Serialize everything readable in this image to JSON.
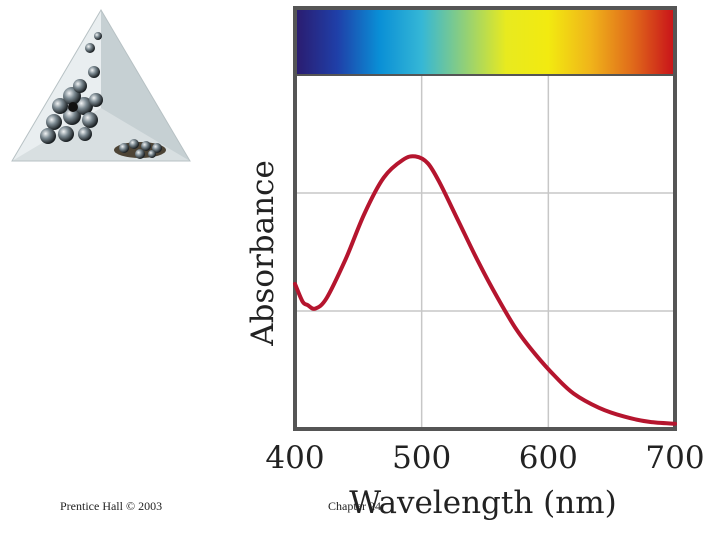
{
  "footer": {
    "left_text": "Prentice Hall © 2003",
    "right_text": "Chapter 24"
  },
  "icons": {
    "logo": "crystal-structure-triangle-logo"
  },
  "colors": {
    "curve": "#b5152e",
    "grid": "#c7c7c7",
    "frame": "#555555",
    "spectrum": [
      "#2b1b6e",
      "#1f3fa8",
      "#0a8fd6",
      "#35b7d6",
      "#8fcf7a",
      "#e8ea1f",
      "#f2ea10",
      "#f0b41a",
      "#e06a1a",
      "#c8101a"
    ]
  },
  "chart_data": {
    "type": "line",
    "title": "",
    "xlabel": "Wavelength (nm)",
    "ylabel": "Absorbance",
    "xlim": [
      400,
      700
    ],
    "ylim": [
      0,
      1
    ],
    "xticks": [
      "400",
      "500",
      "600",
      "700"
    ],
    "grid": true,
    "y_tick_labels_shown": false,
    "legend": "none",
    "spectrum_bar": "visible spectrum above plot (violet to red)",
    "series": [
      {
        "x": [
          400,
          406,
          410,
          416,
          425,
          440,
          455,
          470,
          485,
          495,
          505,
          515,
          530,
          545,
          560,
          575,
          590,
          605,
          620,
          640,
          660,
          680,
          700
        ],
        "y": [
          0.41,
          0.36,
          0.35,
          0.34,
          0.37,
          0.48,
          0.61,
          0.71,
          0.76,
          0.77,
          0.75,
          0.69,
          0.58,
          0.47,
          0.37,
          0.28,
          0.21,
          0.15,
          0.1,
          0.06,
          0.035,
          0.02,
          0.015
        ]
      }
    ]
  }
}
